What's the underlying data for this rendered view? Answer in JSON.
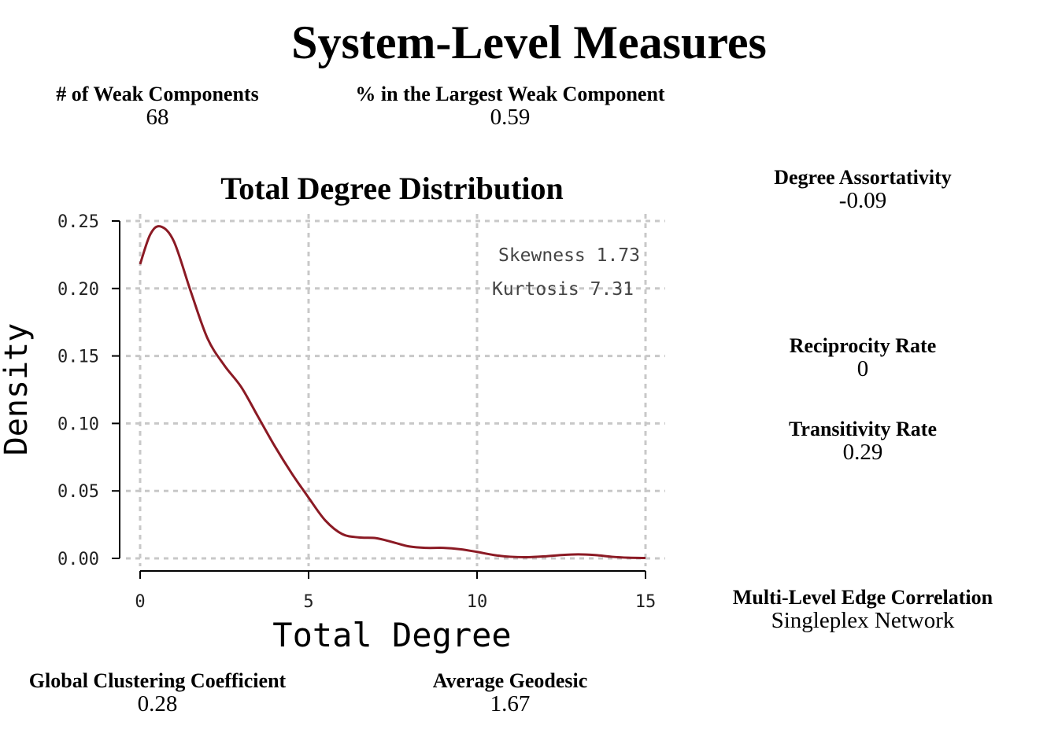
{
  "title": "System-Level Measures",
  "measures": {
    "weak_components": {
      "label": "# of Weak Components",
      "value": "68"
    },
    "largest_weak_pct": {
      "label": "% in the Largest Weak Component",
      "value": "0.59"
    },
    "degree_assortativity": {
      "label": "Degree Assortativity",
      "value": "-0.09"
    },
    "reciprocity": {
      "label": "Reciprocity Rate",
      "value": "0"
    },
    "transitivity": {
      "label": "Transitivity Rate",
      "value": "0.29"
    },
    "multi_level": {
      "label": "Multi-Level Edge Correlation",
      "value": "Singleplex Network"
    },
    "global_clustering": {
      "label": "Global Clustering Coefficient",
      "value": "0.28"
    },
    "avg_geodesic": {
      "label": "Average Geodesic",
      "value": "1.67"
    }
  },
  "chart_data": {
    "type": "line",
    "title": "Total Degree Distribution",
    "xlabel": "Total Degree",
    "ylabel": "Density",
    "xlim": [
      0,
      15
    ],
    "ylim": [
      0,
      0.25
    ],
    "x_ticks": [
      0,
      5,
      10,
      15
    ],
    "y_ticks": [
      0.0,
      0.05,
      0.1,
      0.15,
      0.2,
      0.25
    ],
    "x_tick_labels": [
      "0",
      "5",
      "10",
      "15"
    ],
    "y_tick_labels": [
      "0.00",
      "0.05",
      "0.10",
      "0.15",
      "0.20",
      "0.25"
    ],
    "grid": true,
    "annotations": [
      "Skewness 1.73",
      "Kurtosis 7.31"
    ],
    "line_color": "#8b1a24",
    "series": [
      {
        "x": [
          0,
          0.3,
          0.6,
          1.0,
          1.5,
          2.0,
          2.5,
          3.0,
          3.5,
          4.0,
          4.5,
          5.0,
          5.5,
          6.0,
          6.5,
          7.0,
          7.5,
          8.0,
          8.5,
          9.0,
          9.5,
          10.0,
          10.5,
          11.0,
          11.5,
          12.0,
          12.5,
          13.0,
          13.5,
          14.0,
          14.5,
          15.0
        ],
        "values": [
          0.218,
          0.24,
          0.246,
          0.235,
          0.198,
          0.163,
          0.143,
          0.127,
          0.105,
          0.083,
          0.063,
          0.045,
          0.028,
          0.018,
          0.0155,
          0.015,
          0.012,
          0.0088,
          0.0078,
          0.0078,
          0.0068,
          0.0048,
          0.0025,
          0.0012,
          0.0009,
          0.0015,
          0.0025,
          0.003,
          0.0025,
          0.0012,
          0.0005,
          0.0003
        ]
      }
    ]
  }
}
